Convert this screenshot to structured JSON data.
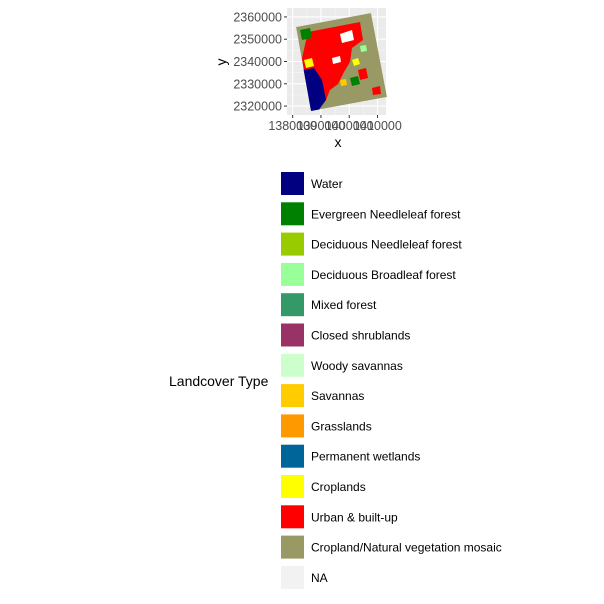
{
  "chart_data": {
    "type": "heatmap",
    "title": "",
    "xlabel": "x",
    "ylabel": "y",
    "x_ticks": [
      "1380000",
      "1390000",
      "1400000",
      "1410000"
    ],
    "x_tick_values": [
      1380000,
      1390000,
      1400000,
      1410000
    ],
    "y_ticks": [
      "2320000",
      "2330000",
      "2340000",
      "2350000",
      "2360000"
    ],
    "y_tick_values": [
      2320000,
      2330000,
      2340000,
      2350000,
      2360000
    ],
    "xlim": [
      1378000,
      1413000
    ],
    "ylim": [
      2316000,
      2364000
    ],
    "grid": true,
    "legend_position": "bottom",
    "legend": {
      "title": "Landcover Type",
      "entries": [
        {
          "label": "Water",
          "color": "#000080"
        },
        {
          "label": "Evergreen Needleleaf forest",
          "color": "#008000"
        },
        {
          "label": "Deciduous Needleleaf forest",
          "color": "#99CC00"
        },
        {
          "label": "Deciduous Broadleaf forest",
          "color": "#99FF99"
        },
        {
          "label": "Mixed forest",
          "color": "#339966"
        },
        {
          "label": "Closed shrublands",
          "color": "#993366"
        },
        {
          "label": "Woody savannas",
          "color": "#CCFFCC"
        },
        {
          "label": "Savannas",
          "color": "#FFCC00"
        },
        {
          "label": "Grasslands",
          "color": "#FF9900"
        },
        {
          "label": "Permanent wetlands",
          "color": "#006699"
        },
        {
          "label": "Croplands",
          "color": "#FFFF00"
        },
        {
          "label": "Urban & built-up",
          "color": "#FF0000"
        },
        {
          "label": "Cropland/Natural vegetation mosaic",
          "color": "#999966"
        },
        {
          "label": "NA",
          "color": "#F2F2F2"
        }
      ]
    }
  }
}
